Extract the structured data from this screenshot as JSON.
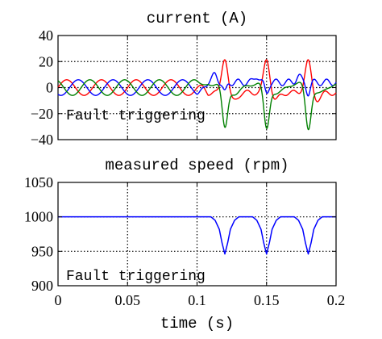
{
  "chart_data": [
    {
      "type": "line",
      "title": "current (A)",
      "xlabel": "",
      "ylabel": "",
      "xlim": [
        0,
        0.2
      ],
      "ylim": [
        -40,
        40
      ],
      "x_ticks": [
        0,
        0.05,
        0.1,
        0.15,
        0.2
      ],
      "y_ticks": [
        40,
        20,
        0,
        -20,
        -40
      ],
      "y_tick_labels": [
        "40",
        "20",
        "0",
        "−20",
        "−40"
      ],
      "grid": true,
      "annotation": "Fault triggering",
      "fault_times": [
        0.12,
        0.15,
        0.18
      ],
      "series": [
        {
          "color": "#ff0000",
          "description": "phase current, sinusoid amplitude ~6 A at ~40 Hz until t=0.1; after 0.1 mostly ~-4 A with spikes to ~22 A at each fault"
        },
        {
          "color": "#0000ff",
          "description": "phase current, sinusoid amplitude ~6 A phase-shifted; after 0.1 near +3 to +8 A with small oscillations at faults"
        },
        {
          "color": "#008000",
          "description": "phase current, sinusoid amplitude ~6 A phase-shifted; after 0.1 near +3 A with dips to ~-30 A at each fault"
        }
      ],
      "x_tick_labels_visible": false
    },
    {
      "type": "line",
      "title": "measured speed (rpm)",
      "xlabel": "time (s)",
      "ylabel": "",
      "xlim": [
        0,
        0.2
      ],
      "ylim": [
        900,
        1050
      ],
      "x_ticks": [
        0,
        0.05,
        0.1,
        0.15,
        0.2
      ],
      "x_tick_labels": [
        "0",
        "0.05",
        "0.1",
        "0.15",
        "0.2"
      ],
      "y_ticks": [
        1050,
        1000,
        950,
        900
      ],
      "y_tick_labels": [
        "1050",
        "1000",
        "950",
        "900"
      ],
      "grid": true,
      "annotation": "Fault triggering",
      "series": [
        {
          "color": "#0000ff",
          "x": [
            0,
            0.11,
            0.113,
            0.116,
            0.118,
            0.12,
            0.122,
            0.124,
            0.127,
            0.13,
            0.14,
            0.143,
            0.146,
            0.148,
            0.15,
            0.152,
            0.154,
            0.157,
            0.16,
            0.17,
            0.173,
            0.176,
            0.178,
            0.18,
            0.182,
            0.184,
            0.187,
            0.19,
            0.2
          ],
          "values": [
            1000,
            1000,
            995,
            982,
            962,
            946,
            962,
            982,
            995,
            1000,
            1000,
            995,
            982,
            962,
            946,
            962,
            982,
            995,
            1000,
            1000,
            995,
            982,
            962,
            946,
            962,
            982,
            995,
            1000,
            1000
          ]
        }
      ]
    }
  ]
}
